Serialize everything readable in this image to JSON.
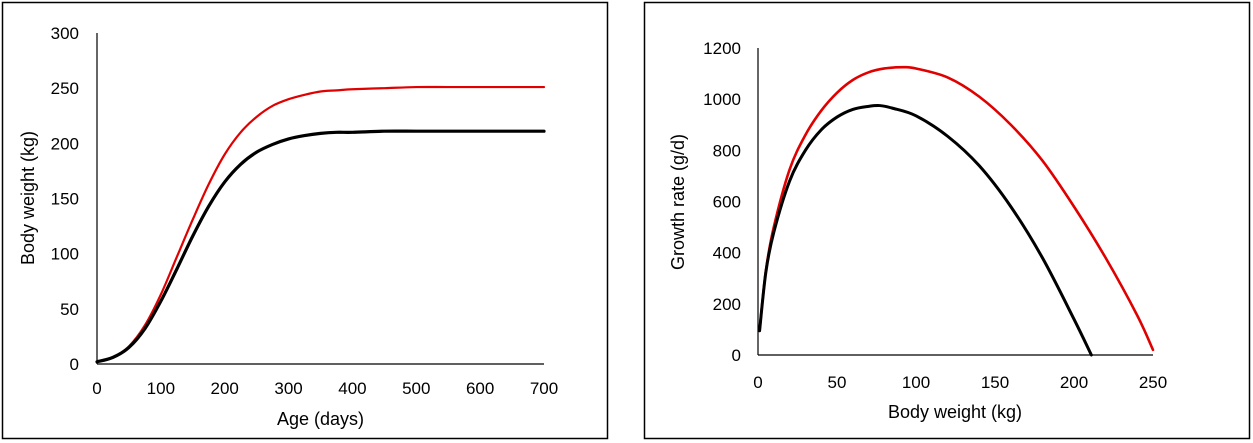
{
  "chart_data": [
    {
      "type": "line",
      "title": "",
      "xlabel": "Age (days)",
      "ylabel": "Body weight  (kg)",
      "xlim": [
        0,
        700
      ],
      "ylim": [
        0,
        300
      ],
      "xticks": [
        0,
        100,
        200,
        300,
        400,
        500,
        600,
        700
      ],
      "yticks": [
        0,
        50,
        100,
        150,
        200,
        250,
        300
      ],
      "xtick_labels": [
        "0",
        "100",
        "200",
        "300",
        "400",
        "500",
        "600",
        "700"
      ],
      "ytick_labels": [
        "0",
        "50",
        "100",
        "150",
        "200",
        "250",
        "300"
      ],
      "grid": false,
      "legend": "none",
      "series": [
        {
          "color": "#e00000",
          "x": [
            0,
            25,
            50,
            75,
            100,
            125,
            150,
            175,
            200,
            225,
            250,
            275,
            300,
            325,
            350,
            375,
            400,
            450,
            500,
            550,
            600,
            650,
            700
          ],
          "y": [
            2,
            6,
            16,
            35,
            63,
            97,
            131,
            163,
            190,
            210,
            224,
            234,
            240,
            244,
            247,
            248,
            249,
            250,
            251,
            251,
            251,
            251,
            251
          ]
        },
        {
          "color": "#000000",
          "x": [
            0,
            25,
            50,
            75,
            100,
            125,
            150,
            175,
            200,
            225,
            250,
            275,
            300,
            325,
            350,
            375,
            400,
            450,
            500,
            550,
            600,
            650,
            700
          ],
          "y": [
            2,
            6,
            15,
            32,
            57,
            86,
            116,
            143,
            165,
            181,
            192,
            199,
            204,
            207,
            209,
            210,
            210,
            211,
            211,
            211,
            211,
            211,
            211
          ]
        }
      ]
    },
    {
      "type": "line",
      "title": "",
      "xlabel": "Body weight (kg)",
      "ylabel": "Growth rate (g/d)",
      "xlim": [
        0,
        250
      ],
      "ylim": [
        0,
        1200
      ],
      "xticks": [
        0,
        50,
        100,
        150,
        200,
        250
      ],
      "yticks": [
        0,
        200,
        400,
        600,
        800,
        1000,
        1200
      ],
      "xtick_labels": [
        "0",
        "50",
        "100",
        "150",
        "200",
        "250"
      ],
      "ytick_labels": [
        "0",
        "200",
        "400",
        "600",
        "800",
        "1000",
        "1200"
      ],
      "grid": false,
      "legend": "none",
      "series": [
        {
          "color": "#e00000",
          "x": [
            1,
            5,
            10,
            20,
            30,
            40,
            50,
            60,
            70,
            80,
            92,
            100,
            120,
            140,
            160,
            180,
            200,
            220,
            240,
            250
          ],
          "y": [
            95,
            330,
            500,
            725,
            860,
            955,
            1025,
            1075,
            1105,
            1120,
            1125,
            1120,
            1085,
            1010,
            900,
            760,
            580,
            380,
            155,
            20
          ]
        },
        {
          "color": "#000000",
          "x": [
            1,
            5,
            10,
            20,
            30,
            40,
            50,
            60,
            70,
            77,
            85,
            100,
            120,
            140,
            160,
            180,
            200,
            211
          ],
          "y": [
            95,
            325,
            480,
            680,
            800,
            880,
            930,
            960,
            972,
            975,
            965,
            935,
            855,
            740,
            580,
            380,
            140,
            0
          ]
        }
      ]
    }
  ]
}
